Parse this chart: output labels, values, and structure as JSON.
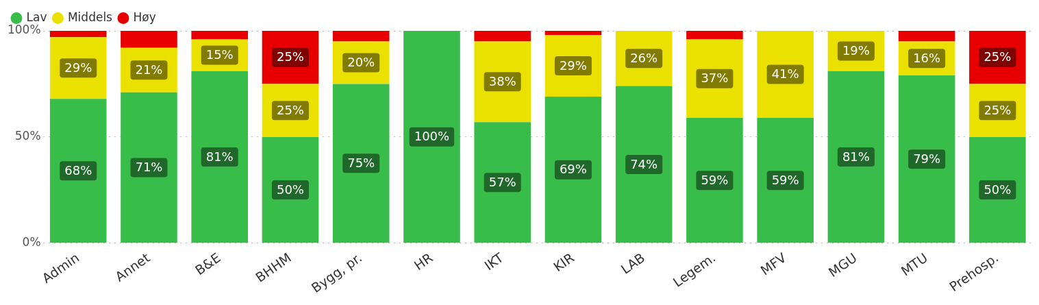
{
  "chart_data": {
    "type": "bar",
    "stacked": true,
    "categories": [
      "Admin",
      "Annet",
      "B&E",
      "BHHM",
      "Bygg, pr.",
      "HR",
      "IKT",
      "KIR",
      "LAB",
      "Legem.",
      "MFV",
      "MGU",
      "MTU",
      "Prehosp."
    ],
    "series": [
      {
        "name": "Lav",
        "color": "#38bd4a",
        "values": [
          68,
          71,
          81,
          50,
          75,
          100,
          57,
          69,
          74,
          59,
          59,
          81,
          79,
          50
        ],
        "value_labels": [
          "68%",
          "71%",
          "81%",
          "50%",
          "75%",
          "100%",
          "57%",
          "69%",
          "74%",
          "59%",
          "59%",
          "81%",
          "79%",
          "50%"
        ]
      },
      {
        "name": "Middels",
        "color": "#ebe100",
        "values": [
          29,
          21,
          15,
          25,
          20,
          0,
          38,
          29,
          26,
          37,
          41,
          19,
          16,
          25
        ],
        "value_labels": [
          "29%",
          "21%",
          "15%",
          "25%",
          "20%",
          null,
          "38%",
          "29%",
          "26%",
          "37%",
          "41%",
          "19%",
          "16%",
          "25%"
        ]
      },
      {
        "name": "Høy",
        "color": "#e60000",
        "values": [
          3,
          8,
          4,
          25,
          5,
          0,
          5,
          2,
          0,
          4,
          0,
          0,
          5,
          25
        ],
        "value_labels": [
          null,
          null,
          null,
          "25%",
          null,
          null,
          null,
          null,
          null,
          null,
          null,
          null,
          null,
          "25%"
        ]
      }
    ],
    "ylim": [
      0,
      100
    ],
    "yticks": [
      {
        "value": 0,
        "label": "0%"
      },
      {
        "value": 50,
        "label": "50%"
      },
      {
        "value": 100,
        "label": "100%"
      }
    ],
    "grid": "y",
    "legend": "top left"
  }
}
